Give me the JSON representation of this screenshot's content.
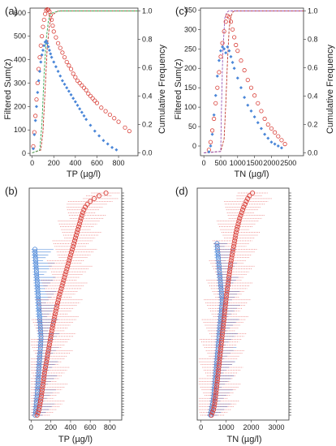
{
  "chart_data": [
    {
      "id": "a",
      "panel_label": "(a)",
      "type": "scatter",
      "xlabel": "TP (µg/l)",
      "ylabel": "Filtered Sum(z)",
      "y2label": "Cumulative Frequency",
      "xticks": [
        0,
        200,
        400,
        600,
        800
      ],
      "yticks": [
        0,
        100,
        200,
        300,
        400,
        500,
        600
      ],
      "y2ticks": [
        "0.0",
        "0.2",
        "0.4",
        "0.6",
        "0.8",
        "1.0"
      ],
      "xlim": [
        -20,
        980
      ],
      "ylim": [
        -10,
        620
      ],
      "series": [
        {
          "color": "#d9413a",
          "marker": "circle",
          "x": [
            10,
            20,
            30,
            40,
            50,
            60,
            70,
            80,
            90,
            100,
            110,
            120,
            130,
            140,
            150,
            160,
            170,
            180,
            190,
            200,
            220,
            240,
            260,
            280,
            300,
            320,
            340,
            360,
            380,
            400,
            420,
            440,
            460,
            480,
            500,
            520,
            540,
            560,
            580,
            600,
            640,
            680,
            720,
            760,
            800,
            860,
            900
          ],
          "values": [
            30,
            90,
            160,
            230,
            300,
            360,
            410,
            460,
            500,
            540,
            570,
            595,
            610,
            615,
            612,
            605,
            590,
            570,
            545,
            520,
            495,
            470,
            450,
            430,
            410,
            390,
            375,
            360,
            340,
            325,
            310,
            300,
            290,
            280,
            270,
            255,
            245,
            235,
            225,
            215,
            195,
            180,
            165,
            150,
            135,
            110,
            95
          ]
        },
        {
          "color": "#4a86d8",
          "marker": "diamond",
          "x": [
            10,
            20,
            30,
            40,
            50,
            60,
            70,
            80,
            90,
            100,
            110,
            120,
            130,
            140,
            150,
            160,
            170,
            180,
            200,
            220,
            240,
            260,
            280,
            300,
            320,
            340,
            360,
            380,
            400,
            420,
            440,
            460,
            480,
            500,
            540,
            580,
            620,
            660,
            700,
            740,
            780
          ],
          "values": [
            20,
            80,
            140,
            200,
            260,
            310,
            350,
            390,
            420,
            440,
            460,
            475,
            480,
            470,
            455,
            440,
            425,
            410,
            390,
            370,
            350,
            330,
            310,
            295,
            280,
            265,
            250,
            235,
            220,
            205,
            190,
            175,
            160,
            145,
            120,
            95,
            75,
            55,
            40,
            25,
            15
          ]
        }
      ],
      "cumulative": [
        {
          "color": "#c0392b",
          "x": [
            0,
            80,
            100,
            120,
            140,
            160,
            180,
            200,
            220,
            240,
            300,
            980
          ],
          "values": [
            0,
            0.02,
            0.15,
            0.45,
            0.75,
            0.9,
            0.96,
            0.98,
            0.99,
            1.0,
            1.0,
            1.0
          ]
        },
        {
          "color": "#33a852",
          "x": [
            0,
            70,
            90,
            110,
            130,
            150,
            170,
            200,
            260,
            980
          ],
          "values": [
            0,
            0.02,
            0.2,
            0.55,
            0.8,
            0.93,
            0.98,
            0.99,
            1.0,
            1.0
          ]
        }
      ]
    },
    {
      "id": "c",
      "panel_label": "(c)",
      "type": "scatter",
      "xlabel": "TN (µg/l)",
      "ylabel": "Filtered Sum(z)",
      "y2label": "Cumulative Frequency",
      "xticks": [
        0,
        500,
        1000,
        1500,
        2000,
        2500
      ],
      "yticks": [
        0,
        50,
        100,
        150,
        200,
        250,
        300,
        350
      ],
      "y2ticks": [
        "0.0",
        "0.2",
        "0.4",
        "0.6",
        "0.8",
        "1.0"
      ],
      "xlim": [
        -100,
        2950
      ],
      "ylim": [
        -25,
        355
      ],
      "series": [
        {
          "color": "#d9413a",
          "marker": "circle",
          "x": [
            150,
            200,
            250,
            300,
            350,
            400,
            450,
            500,
            550,
            600,
            650,
            700,
            750,
            800,
            850,
            900,
            950,
            1000,
            1100,
            1200,
            1300,
            1400,
            1500,
            1600,
            1700,
            1800,
            1900,
            2000,
            2100,
            2200,
            2300,
            2400
          ],
          "values": [
            -10,
            10,
            40,
            70,
            110,
            150,
            190,
            230,
            265,
            295,
            320,
            335,
            332,
            320,
            300,
            280,
            260,
            245,
            220,
            195,
            170,
            150,
            130,
            110,
            90,
            70,
            55,
            45,
            35,
            25,
            15,
            5
          ]
        },
        {
          "color": "#4a86d8",
          "marker": "diamond",
          "x": [
            150,
            200,
            250,
            300,
            350,
            400,
            450,
            500,
            550,
            600,
            650,
            700,
            750,
            800,
            850,
            900,
            1000,
            1100,
            1200,
            1300,
            1400,
            1500,
            1600,
            1700,
            1800,
            1900,
            2000,
            2100,
            2200,
            2300
          ],
          "values": [
            -15,
            0,
            30,
            80,
            130,
            180,
            220,
            245,
            255,
            250,
            240,
            255,
            245,
            230,
            215,
            200,
            175,
            150,
            125,
            105,
            90,
            75,
            60,
            45,
            30,
            20,
            10,
            5,
            0,
            -5
          ]
        }
      ],
      "cumulative": [
        {
          "color": "#c0392b",
          "x": [
            0,
            500,
            600,
            650,
            700,
            750,
            800,
            850,
            900,
            1000,
            2950
          ],
          "values": [
            0,
            0.01,
            0.1,
            0.35,
            0.65,
            0.88,
            0.96,
            0.99,
            1.0,
            1.0,
            1.0
          ]
        },
        {
          "color": "#9b59b6",
          "x": [
            0,
            500,
            520,
            560,
            620,
            680,
            740,
            2950
          ],
          "values": [
            0,
            0.01,
            0.3,
            0.7,
            0.95,
            0.99,
            1.0,
            1.0
          ]
        }
      ]
    },
    {
      "id": "b",
      "panel_label": "(b)",
      "type": "scatter",
      "xlabel": "TP (µg/l)",
      "xticks": [
        0,
        200,
        400,
        600,
        800
      ],
      "xlim": [
        -20,
        920
      ],
      "rows": 80,
      "blue_start_row": 20,
      "series": [
        {
          "color": "#d9413a",
          "marker": "circle",
          "note": "red change-point estimates per row, ordered bottom to top",
          "values": [
            60,
            70,
            80,
            85,
            90,
            95,
            100,
            105,
            108,
            112,
            116,
            120,
            124,
            128,
            132,
            136,
            140,
            145,
            150,
            155,
            160,
            165,
            170,
            175,
            180,
            185,
            190,
            195,
            200,
            205,
            210,
            215,
            220,
            226,
            232,
            238,
            244,
            250,
            256,
            262,
            268,
            275,
            282,
            290,
            298,
            306,
            314,
            322,
            330,
            338,
            346,
            354,
            362,
            370,
            378,
            386,
            394,
            402,
            410,
            418,
            426,
            434,
            442,
            450,
            458,
            466,
            474,
            482,
            490,
            498,
            506,
            515,
            525,
            535,
            550,
            570,
            600,
            640,
            690,
            760
          ]
        },
        {
          "color": "#4a86d8",
          "marker": "circle",
          "note": "blue change-point estimates for the lower 60 rows",
          "values": [
            40,
            45,
            48,
            50,
            52,
            55,
            57,
            60,
            62,
            64,
            66,
            68,
            70,
            72,
            74,
            76,
            78,
            80,
            82,
            84,
            86,
            88,
            90,
            92,
            94,
            96,
            98,
            100,
            100,
            98,
            96,
            94,
            92,
            90,
            88,
            86,
            84,
            82,
            80,
            78,
            76,
            74,
            72,
            70,
            68,
            66,
            64,
            62,
            60,
            58,
            56,
            54,
            52,
            50,
            48,
            46,
            44,
            42,
            40,
            38
          ]
        }
      ]
    },
    {
      "id": "d",
      "panel_label": "(d)",
      "type": "scatter",
      "xlabel": "TN (µg/l)",
      "xticks": [
        0,
        1000,
        2000,
        3000
      ],
      "xlim": [
        -150,
        3500
      ],
      "rows": 80,
      "blue_start_row": 18,
      "series": [
        {
          "color": "#d9413a",
          "marker": "circle",
          "note": "red change-point estimates per row, ordered bottom to top",
          "values": [
            420,
            460,
            500,
            520,
            540,
            555,
            570,
            585,
            600,
            612,
            624,
            636,
            648,
            660,
            672,
            684,
            696,
            708,
            720,
            732,
            744,
            756,
            768,
            780,
            792,
            804,
            816,
            828,
            840,
            852,
            864,
            876,
            888,
            900,
            912,
            924,
            936,
            948,
            960,
            972,
            984,
            996,
            1008,
            1020,
            1035,
            1050,
            1065,
            1080,
            1095,
            1110,
            1125,
            1140,
            1155,
            1170,
            1185,
            1200,
            1220,
            1240,
            1260,
            1280,
            1300,
            1320,
            1340,
            1360,
            1380,
            1400,
            1425,
            1450,
            1480,
            1510,
            1540,
            1580,
            1620,
            1660,
            1700,
            1750,
            1800,
            1860,
            1930,
            2050
          ]
        },
        {
          "color": "#4a86d8",
          "marker": "circle",
          "note": "blue change-point estimates for the lower 62 rows",
          "values": [
            380,
            400,
            420,
            440,
            460,
            480,
            500,
            510,
            520,
            530,
            540,
            550,
            560,
            570,
            580,
            590,
            600,
            610,
            620,
            630,
            640,
            650,
            660,
            670,
            680,
            690,
            700,
            710,
            720,
            730,
            740,
            750,
            760,
            770,
            780,
            790,
            800,
            810,
            820,
            830,
            840,
            840,
            830,
            820,
            810,
            800,
            790,
            780,
            770,
            760,
            750,
            740,
            730,
            720,
            710,
            700,
            690,
            680,
            670,
            660,
            650,
            640
          ]
        }
      ]
    }
  ]
}
